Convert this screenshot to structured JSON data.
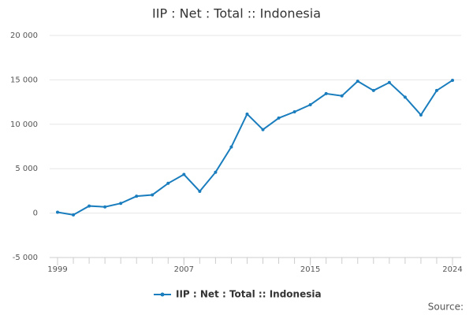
{
  "chart_data": {
    "type": "line",
    "title": "IIP : Net : Total :: Indonesia",
    "x": [
      1999,
      2000,
      2001,
      2002,
      2003,
      2004,
      2005,
      2006,
      2007,
      2008,
      2009,
      2010,
      2011,
      2012,
      2013,
      2014,
      2015,
      2016,
      2017,
      2018,
      2019,
      2020,
      2021,
      2022,
      2023,
      2024
    ],
    "series": [
      {
        "name": "IIP : Net : Total :: Indonesia",
        "color": "#1a7dbd",
        "values": [
          100,
          -200,
          800,
          700,
          1100,
          1900,
          2050,
          3350,
          4350,
          2450,
          4600,
          7450,
          11150,
          9400,
          10700,
          11400,
          12200,
          13450,
          13200,
          14850,
          13800,
          14700,
          13050,
          11050,
          13800,
          14950
        ]
      }
    ],
    "xlim": [
      1999,
      2024
    ],
    "xticks": [
      1999,
      2007,
      2015,
      2024
    ],
    "ylim": [
      -5000,
      20000
    ],
    "yticks": [
      {
        "value": -5000,
        "label": "-5 000"
      },
      0,
      {
        "value": 5000,
        "label": "5 000"
      },
      {
        "value": 10000,
        "label": "10 000"
      },
      {
        "value": 15000,
        "label": "15 000"
      },
      {
        "value": 20000,
        "label": "20 000"
      }
    ],
    "grid": true,
    "legend": "bottom",
    "source": "Source:"
  }
}
